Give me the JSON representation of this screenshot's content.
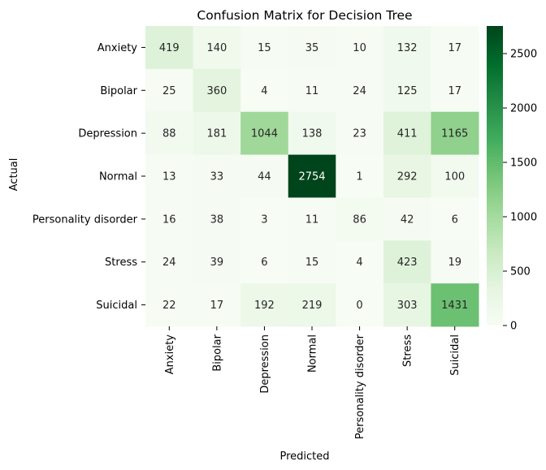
{
  "chart_data": {
    "type": "heatmap",
    "title": "Confusion Matrix for Decision Tree",
    "xlabel": "Predicted",
    "ylabel": "Actual",
    "x_categories": [
      "Anxiety",
      "Bipolar",
      "Depression",
      "Normal",
      "Personality disorder",
      "Stress",
      "Suicidal"
    ],
    "y_categories": [
      "Anxiety",
      "Bipolar",
      "Depression",
      "Normal",
      "Personality disorder",
      "Stress",
      "Suicidal"
    ],
    "values": [
      [
        419,
        140,
        15,
        35,
        10,
        132,
        17
      ],
      [
        25,
        360,
        4,
        11,
        24,
        125,
        17
      ],
      [
        88,
        181,
        1044,
        138,
        23,
        411,
        1165
      ],
      [
        13,
        33,
        44,
        2754,
        1,
        292,
        100
      ],
      [
        16,
        38,
        3,
        11,
        86,
        42,
        6
      ],
      [
        24,
        39,
        6,
        15,
        4,
        423,
        19
      ],
      [
        22,
        17,
        192,
        219,
        0,
        303,
        1431
      ]
    ],
    "colorbar": {
      "colormap": "Greens",
      "range": [
        0,
        2754
      ],
      "ticks": [
        "0",
        "500",
        "1000",
        "1500",
        "2000",
        "2500"
      ],
      "tick_values": [
        0,
        500,
        1000,
        1500,
        2000,
        2500
      ]
    },
    "grid": false,
    "annotations": "cell values shown"
  }
}
